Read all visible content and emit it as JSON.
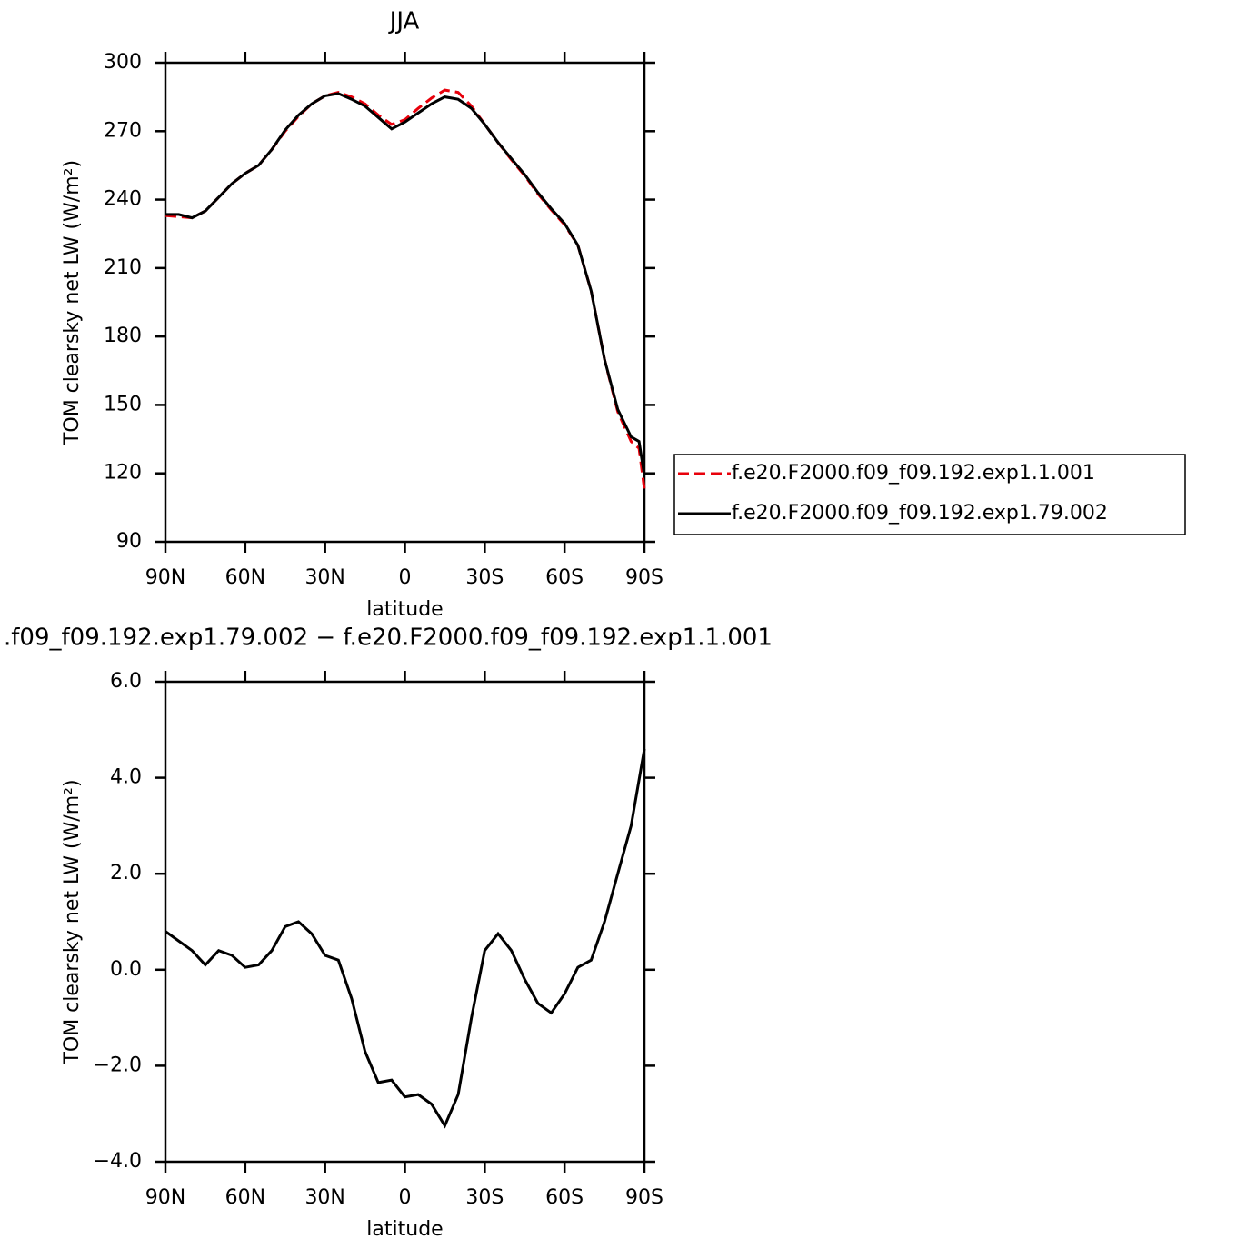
{
  "chart_data": [
    {
      "type": "line",
      "title": "JJA",
      "xlabel": "latitude",
      "ylabel": "TOM clearsky net LW (W/m²)",
      "x": [
        90,
        85,
        80,
        75,
        70,
        65,
        60,
        55,
        50,
        45,
        40,
        35,
        30,
        25,
        20,
        15,
        10,
        5,
        0,
        -5,
        -10,
        -15,
        -20,
        -25,
        -30,
        -35,
        -40,
        -45,
        -50,
        -55,
        -60,
        -65,
        -70,
        -75,
        -80,
        -85,
        -88,
        -90
      ],
      "series": [
        {
          "name": "f.e20.F2000.f09_f09.192.exp1.1.001",
          "color": "#e8000b",
          "dashed": true,
          "values": [
            233,
            232.5,
            232,
            235,
            241,
            247,
            251.5,
            255,
            262,
            270,
            276.5,
            282,
            285.5,
            287,
            285,
            282,
            277,
            273,
            275,
            280,
            284.5,
            288,
            287,
            281,
            273,
            265,
            257.5,
            250.5,
            242.5,
            235.5,
            229,
            220,
            200,
            170,
            147,
            134,
            131,
            113
          ]
        },
        {
          "name": "f.e20.F2000.f09_f09.192.exp1.79.002",
          "color": "#000000",
          "dashed": false,
          "values": [
            233.5,
            233.5,
            232,
            235,
            241,
            247,
            251.5,
            255,
            262,
            270.5,
            277,
            282,
            285.5,
            286.5,
            284,
            281,
            276,
            271,
            274,
            278,
            282,
            285,
            284,
            280,
            273,
            265,
            258,
            251,
            243,
            236,
            229.5,
            220,
            200,
            170,
            148,
            136,
            134,
            119
          ]
        }
      ],
      "xlim": [
        90,
        -90
      ],
      "xticks": [
        {
          "value": 90,
          "label": "90N"
        },
        {
          "value": 60,
          "label": "60N"
        },
        {
          "value": 30,
          "label": "30N"
        },
        0,
        {
          "value": -30,
          "label": "30S"
        },
        {
          "value": -60,
          "label": "60S"
        },
        {
          "value": -90,
          "label": "90S"
        }
      ],
      "ylim": [
        90,
        300
      ],
      "yticks": [
        90,
        120,
        150,
        180,
        210,
        240,
        270,
        300
      ],
      "legend": "right"
    },
    {
      "type": "line",
      "title": ".f09_f09.192.exp1.79.002 − f.e20.F2000.f09_f09.192.exp1.1.001",
      "xlabel": "latitude",
      "ylabel": "TOM clearsky net LW (W/m²)",
      "x": [
        90,
        85,
        80,
        75,
        70,
        65,
        60,
        55,
        50,
        45,
        40,
        35,
        30,
        25,
        20,
        15,
        10,
        5,
        0,
        -5,
        -10,
        -15,
        -20,
        -25,
        -30,
        -35,
        -40,
        -45,
        -50,
        -55,
        -60,
        -65,
        -70,
        -75,
        -80,
        -85,
        -90
      ],
      "color": "#000000",
      "values": [
        0.8,
        0.6,
        0.4,
        0.1,
        0.4,
        0.3,
        0.05,
        0.1,
        0.4,
        0.9,
        1.0,
        0.75,
        0.3,
        0.2,
        -0.6,
        -1.7,
        -2.35,
        -2.3,
        -2.65,
        -2.6,
        -2.8,
        -3.25,
        -2.6,
        -1.0,
        0.4,
        0.75,
        0.4,
        -0.2,
        -0.7,
        -0.9,
        -0.5,
        0.05,
        0.2,
        1.0,
        2.0,
        3.0,
        4.6
      ],
      "xlim": [
        90,
        -90
      ],
      "xticks": [
        {
          "value": 90,
          "label": "90N"
        },
        {
          "value": 60,
          "label": "60N"
        },
        {
          "value": 30,
          "label": "30N"
        },
        0,
        {
          "value": -30,
          "label": "30S"
        },
        {
          "value": -60,
          "label": "60S"
        },
        {
          "value": -90,
          "label": "90S"
        }
      ],
      "ylim": [
        -4,
        6
      ],
      "yticks": [
        {
          "value": -4,
          "label": "−4.0"
        },
        {
          "value": -2,
          "label": "−2.0"
        },
        {
          "value": 0,
          "label": "0.0"
        },
        {
          "value": 2,
          "label": "2.0"
        },
        {
          "value": 4,
          "label": "4.0"
        },
        {
          "value": 6,
          "label": "6.0"
        }
      ]
    }
  ]
}
